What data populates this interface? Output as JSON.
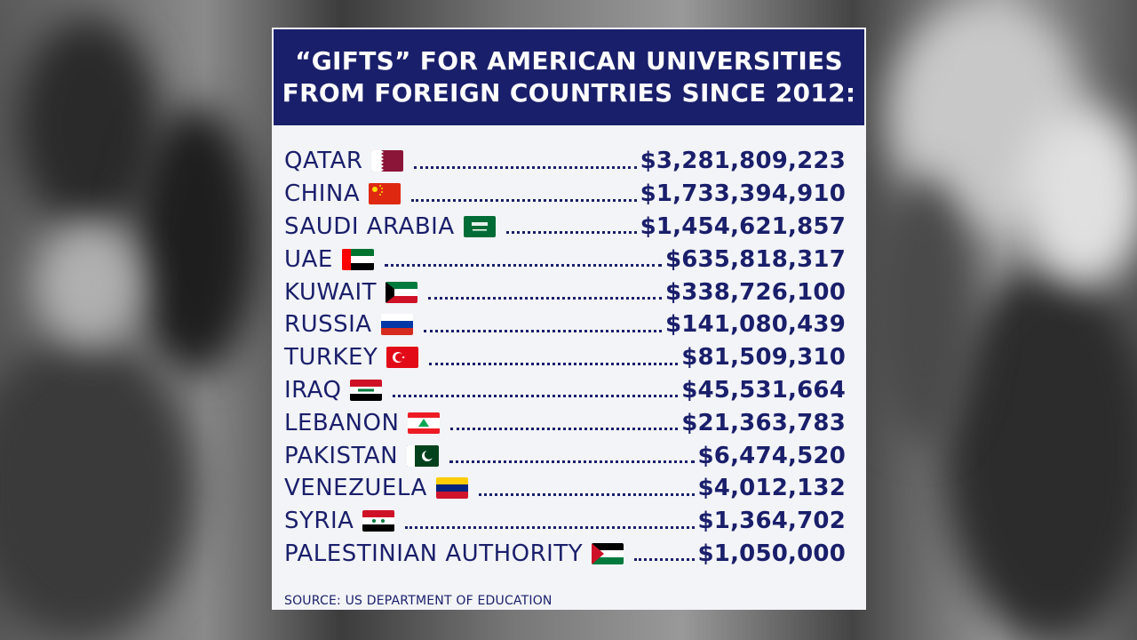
{
  "header": {
    "line1": "“GIFTS” FOR AMERICAN UNIVERSITIES",
    "line2": "FROM FOREIGN COUNTRIES SINCE 2012:"
  },
  "rows": [
    {
      "country": "QATAR",
      "flag": "qatar-flag",
      "amount": "$3,281,809,223"
    },
    {
      "country": "CHINA",
      "flag": "china-flag",
      "amount": "$1,733,394,910"
    },
    {
      "country": "SAUDI ARABIA",
      "flag": "saudi-arabia-flag",
      "amount": "$1,454,621,857"
    },
    {
      "country": "UAE",
      "flag": "uae-flag",
      "amount": "$635,818,317"
    },
    {
      "country": "KUWAIT",
      "flag": "kuwait-flag",
      "amount": "$338,726,100"
    },
    {
      "country": "RUSSIA",
      "flag": "russia-flag",
      "amount": "$141,080,439"
    },
    {
      "country": "TURKEY",
      "flag": "turkey-flag",
      "amount": "$81,509,310"
    },
    {
      "country": "IRAQ",
      "flag": "iraq-flag",
      "amount": "$45,531,664"
    },
    {
      "country": "LEBANON",
      "flag": "lebanon-flag",
      "amount": "$21,363,783"
    },
    {
      "country": "PAKISTAN",
      "flag": "pakistan-flag",
      "amount": "$6,474,520"
    },
    {
      "country": "VENEZUELA",
      "flag": "venezuela-flag",
      "amount": "$4,012,132"
    },
    {
      "country": "SYRIA",
      "flag": "syria-flag",
      "amount": "$1,364,702"
    },
    {
      "country": "PALESTINIAN AUTHORITY",
      "flag": "palestine-flag",
      "amount": "$1,050,000"
    }
  ],
  "source": "SOURCE: US DEPARTMENT OF EDUCATION",
  "colors": {
    "header_bg": "#1a1f6b",
    "text": "#1a1f6b",
    "card_bg": "#f3f4f7"
  }
}
